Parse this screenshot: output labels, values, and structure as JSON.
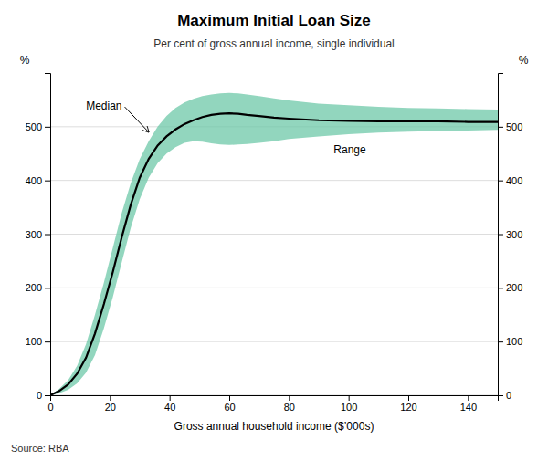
{
  "chart_data": {
    "type": "line",
    "title": "Maximum Initial Loan Size",
    "subtitle": "Per cent of gross annual income, single individual",
    "xlabel": "Gross annual household income ($’000s)",
    "ylabel": "%",
    "y2label": "%",
    "source": "Source: RBA",
    "xlim": [
      0,
      150
    ],
    "ylim": [
      0,
      600
    ],
    "y2lim": [
      0,
      600
    ],
    "xticks": [
      0,
      20,
      40,
      60,
      80,
      100,
      120,
      140
    ],
    "yticks": [
      0,
      100,
      200,
      300,
      400,
      500
    ],
    "y2ticks": [
      0,
      100,
      200,
      300,
      400,
      500
    ],
    "grid": "y",
    "x": [
      0,
      3,
      6,
      9,
      12,
      15,
      18,
      21,
      24,
      27,
      30,
      33,
      36,
      39,
      42,
      45,
      48,
      51,
      54,
      57,
      60,
      63,
      66,
      70,
      75,
      80,
      90,
      100,
      110,
      120,
      130,
      140,
      150
    ],
    "series": [
      {
        "type": "area",
        "color": "#6ec8a8",
        "lower": [
          0,
          4,
          10,
          22,
          42,
          75,
          125,
          183,
          248,
          312,
          365,
          405,
          432,
          450,
          462,
          470,
          473,
          472,
          469,
          467,
          466,
          467,
          468,
          470,
          473,
          477,
          482,
          486,
          489,
          491,
          492,
          493,
          494
        ],
        "upper": [
          0,
          12,
          28,
          55,
          95,
          150,
          210,
          275,
          340,
          395,
          440,
          473,
          500,
          520,
          535,
          545,
          552,
          557,
          560,
          562,
          563,
          562,
          560,
          557,
          553,
          549,
          543,
          540,
          537,
          535,
          534,
          533,
          532
        ]
      },
      {
        "type": "line",
        "color": "#000000",
        "values": [
          0,
          8,
          20,
          40,
          70,
          115,
          170,
          230,
          295,
          355,
          405,
          440,
          465,
          482,
          495,
          505,
          512,
          518,
          522,
          524,
          525,
          524,
          522,
          520,
          517,
          515,
          512,
          511,
          510,
          510,
          510,
          509,
          509
        ]
      }
    ],
    "annotations": [
      {
        "text": "Median",
        "x": 33,
        "y": 490,
        "text_x": 12,
        "text_y": 537
      },
      {
        "text": "Range",
        "text_x": 95,
        "text_y": 455
      }
    ]
  }
}
